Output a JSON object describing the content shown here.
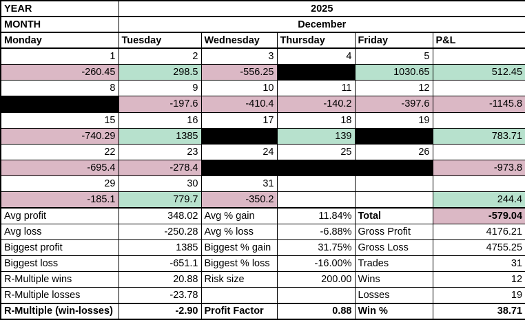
{
  "colors": {
    "gain": "#b7e1cd",
    "loss": "#dbb8c5",
    "blocked": "#000000",
    "grid": "#000000"
  },
  "meta": {
    "year_label": "YEAR",
    "year_value": "2025",
    "month_label": "MONTH",
    "month_value": "December"
  },
  "calendar": {
    "day_headers": [
      "Monday",
      "Tuesday",
      "Wednesday",
      "Thursday",
      "Friday",
      "P&L"
    ],
    "weeks": [
      {
        "dates": [
          "1",
          "2",
          "3",
          "4",
          "5",
          ""
        ],
        "values": [
          {
            "v": "-260.45",
            "bg": "loss"
          },
          {
            "v": "298.5",
            "bg": "gain"
          },
          {
            "v": "-556.25",
            "bg": "loss"
          },
          {
            "v": "",
            "bg": "blocked"
          },
          {
            "v": "1030.65",
            "bg": "gain"
          },
          {
            "v": "512.45",
            "bg": "gain"
          }
        ]
      },
      {
        "dates": [
          "8",
          "9",
          "10",
          "11",
          "12",
          ""
        ],
        "values": [
          {
            "v": "",
            "bg": "blocked"
          },
          {
            "v": "-197.6",
            "bg": "loss"
          },
          {
            "v": "-410.4",
            "bg": "loss"
          },
          {
            "v": "-140.2",
            "bg": "loss"
          },
          {
            "v": "-397.6",
            "bg": "loss"
          },
          {
            "v": "-1145.8",
            "bg": "loss"
          }
        ]
      },
      {
        "dates": [
          "15",
          "16",
          "17",
          "18",
          "19",
          ""
        ],
        "values": [
          {
            "v": "-740.29",
            "bg": "loss"
          },
          {
            "v": "1385",
            "bg": "gain"
          },
          {
            "v": "",
            "bg": "blocked"
          },
          {
            "v": "139",
            "bg": "gain"
          },
          {
            "v": "",
            "bg": "blocked"
          },
          {
            "v": "783.71",
            "bg": "gain"
          }
        ]
      },
      {
        "dates": [
          "22",
          "23",
          "24",
          "25",
          "26",
          ""
        ],
        "values": [
          {
            "v": "-695.4",
            "bg": "loss"
          },
          {
            "v": "-278.4",
            "bg": "loss"
          },
          {
            "v": "",
            "bg": "blocked"
          },
          {
            "v": "",
            "bg": "blocked"
          },
          {
            "v": "",
            "bg": "blocked"
          },
          {
            "v": "-973.8",
            "bg": "loss"
          }
        ]
      },
      {
        "dates": [
          "29",
          "30",
          "31",
          "",
          "",
          ""
        ],
        "values": [
          {
            "v": "-185.1",
            "bg": "loss"
          },
          {
            "v": "779.7",
            "bg": "gain"
          },
          {
            "v": "-350.2",
            "bg": "loss"
          },
          {
            "v": "",
            "bg": null
          },
          {
            "v": "",
            "bg": null
          },
          {
            "v": "244.4",
            "bg": "gain"
          }
        ]
      }
    ]
  },
  "stats": {
    "rows": [
      {
        "cells": [
          {
            "t": "Avg profit"
          },
          {
            "t": "348.02"
          },
          {
            "t": "Avg % gain"
          },
          {
            "t": "11.84%"
          },
          {
            "t": "Total",
            "bold": true
          },
          {
            "t": "-579.04",
            "bold": true,
            "bg": "loss"
          }
        ]
      },
      {
        "cells": [
          {
            "t": "Avg loss"
          },
          {
            "t": "-250.28"
          },
          {
            "t": "Avg % loss"
          },
          {
            "t": "-6.88%"
          },
          {
            "t": "Gross Profit"
          },
          {
            "t": "4176.21"
          }
        ]
      },
      {
        "cells": [
          {
            "t": "Biggest profit"
          },
          {
            "t": "1385"
          },
          {
            "t": "Biggest % gain"
          },
          {
            "t": "31.75%"
          },
          {
            "t": "Gross Loss"
          },
          {
            "t": "4755.25"
          }
        ]
      },
      {
        "cells": [
          {
            "t": "Biggest loss"
          },
          {
            "t": "-651.1"
          },
          {
            "t": "Biggest % loss"
          },
          {
            "t": "-16.00%"
          },
          {
            "t": "Trades"
          },
          {
            "t": "31"
          }
        ]
      },
      {
        "cells": [
          {
            "t": "R-Multiple wins"
          },
          {
            "t": "20.88"
          },
          {
            "t": "Risk size"
          },
          {
            "t": "200.00"
          },
          {
            "t": "Wins"
          },
          {
            "t": "12"
          }
        ]
      },
      {
        "cells": [
          {
            "t": "R-Multiple losses"
          },
          {
            "t": "-23.78"
          },
          {
            "t": ""
          },
          {
            "t": ""
          },
          {
            "t": "Losses"
          },
          {
            "t": "19"
          }
        ]
      },
      {
        "cells": [
          {
            "t": "R-Multiple (win-losses)",
            "bold": true
          },
          {
            "t": "-2.90",
            "bold": true
          },
          {
            "t": "Profit Factor",
            "bold": true
          },
          {
            "t": "0.88",
            "bold": true
          },
          {
            "t": "Win %",
            "bold": true
          },
          {
            "t": "38.71",
            "bold": true
          }
        ]
      }
    ]
  }
}
